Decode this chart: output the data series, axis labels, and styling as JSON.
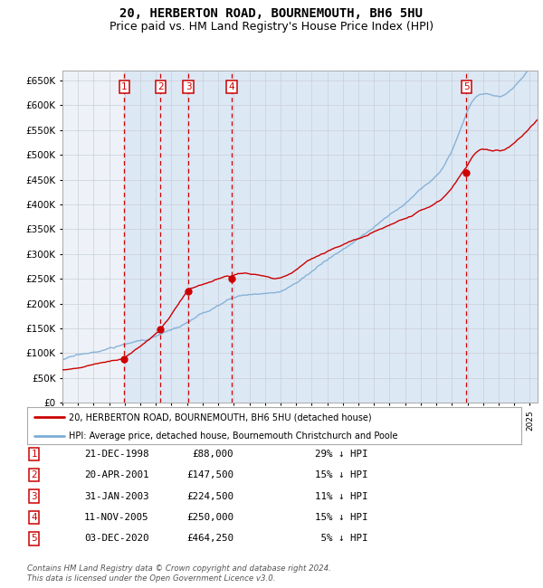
{
  "title": "20, HERBERTON ROAD, BOURNEMOUTH, BH6 5HU",
  "subtitle": "Price paid vs. HM Land Registry's House Price Index (HPI)",
  "title_fontsize": 10,
  "subtitle_fontsize": 9,
  "sales": [
    {
      "num": 1,
      "date_label": "21-DEC-1998",
      "date_x": 1998.97,
      "price": 88000,
      "pct": "29%"
    },
    {
      "num": 2,
      "date_label": "20-APR-2001",
      "date_x": 2001.3,
      "price": 147500,
      "pct": "15%"
    },
    {
      "num": 3,
      "date_label": "31-JAN-2003",
      "date_x": 2003.08,
      "price": 224500,
      "pct": "11%"
    },
    {
      "num": 4,
      "date_label": "11-NOV-2005",
      "date_x": 2005.86,
      "price": 250000,
      "pct": "15%"
    },
    {
      "num": 5,
      "date_label": "03-DEC-2020",
      "date_x": 2020.92,
      "price": 464250,
      "pct": "5%"
    }
  ],
  "legend_line1": "20, HERBERTON ROAD, BOURNEMOUTH, BH6 5HU (detached house)",
  "legend_line2": "HPI: Average price, detached house, Bournemouth Christchurch and Poole",
  "footer": "Contains HM Land Registry data © Crown copyright and database right 2024.\nThis data is licensed under the Open Government Licence v3.0.",
  "table_rows": [
    {
      "num": 1,
      "date": "21-DEC-1998",
      "price": "£88,000",
      "note": "29% ↓ HPI"
    },
    {
      "num": 2,
      "date": "20-APR-2001",
      "price": "£147,500",
      "note": "15% ↓ HPI"
    },
    {
      "num": 3,
      "date": "31-JAN-2003",
      "price": "£224,500",
      "note": "11% ↓ HPI"
    },
    {
      "num": 4,
      "date": "11-NOV-2005",
      "price": "£250,000",
      "note": "15% ↓ HPI"
    },
    {
      "num": 5,
      "date": "03-DEC-2020",
      "price": "£464,250",
      "note": " 5% ↓ HPI"
    }
  ],
  "ylim": [
    0,
    670000
  ],
  "yticks": [
    0,
    50000,
    100000,
    150000,
    200000,
    250000,
    300000,
    350000,
    400000,
    450000,
    500000,
    550000,
    600000,
    650000
  ],
  "xlim": [
    1995.0,
    2025.5
  ],
  "sale_color": "#cc0000",
  "hpi_color": "#7dadd4",
  "dashed_line_color": "#cc0000",
  "shading_color": "#dde8f5",
  "bg_color": "#eef2f8",
  "grid_color": "#c8cfd8",
  "box_color": "#cc0000"
}
